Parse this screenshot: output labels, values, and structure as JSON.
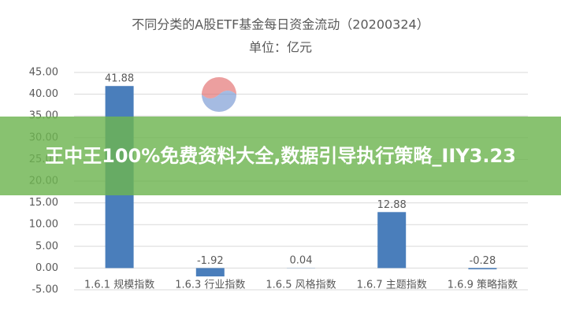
{
  "chart_data": {
    "type": "bar",
    "title": "不同分类的A股ETF基金每日资金流动（20200324）",
    "subtitle": "单位：亿元",
    "categories": [
      "1.6.1 规模指数",
      "1.6.3 行业指数",
      "1.6.5 风格指数",
      "1.6.7 主题指数",
      "1.6.9 策略指数"
    ],
    "values": [
      41.88,
      -1.92,
      0.04,
      12.88,
      -0.28
    ],
    "color": "#4a7ebb",
    "ylim": [
      -5,
      45
    ],
    "yticks": [
      {
        "value": -5,
        "label": "-5.00"
      },
      {
        "value": 0,
        "label": "0.00"
      },
      {
        "value": 5,
        "label": "5.00"
      },
      {
        "value": 10,
        "label": "10.00"
      },
      {
        "value": 15,
        "label": "15.00"
      },
      {
        "value": 20,
        "label": "20.00"
      },
      {
        "value": 25,
        "label": "25.00"
      },
      {
        "value": 30,
        "label": "30.00"
      },
      {
        "value": 35,
        "label": "35.00"
      },
      {
        "value": 40,
        "label": "40.00"
      },
      {
        "value": 45,
        "label": "45.00"
      }
    ],
    "grid": true
  },
  "banner": "王中王100%免费资料大全,数据引导执行策略_IIY3.23"
}
